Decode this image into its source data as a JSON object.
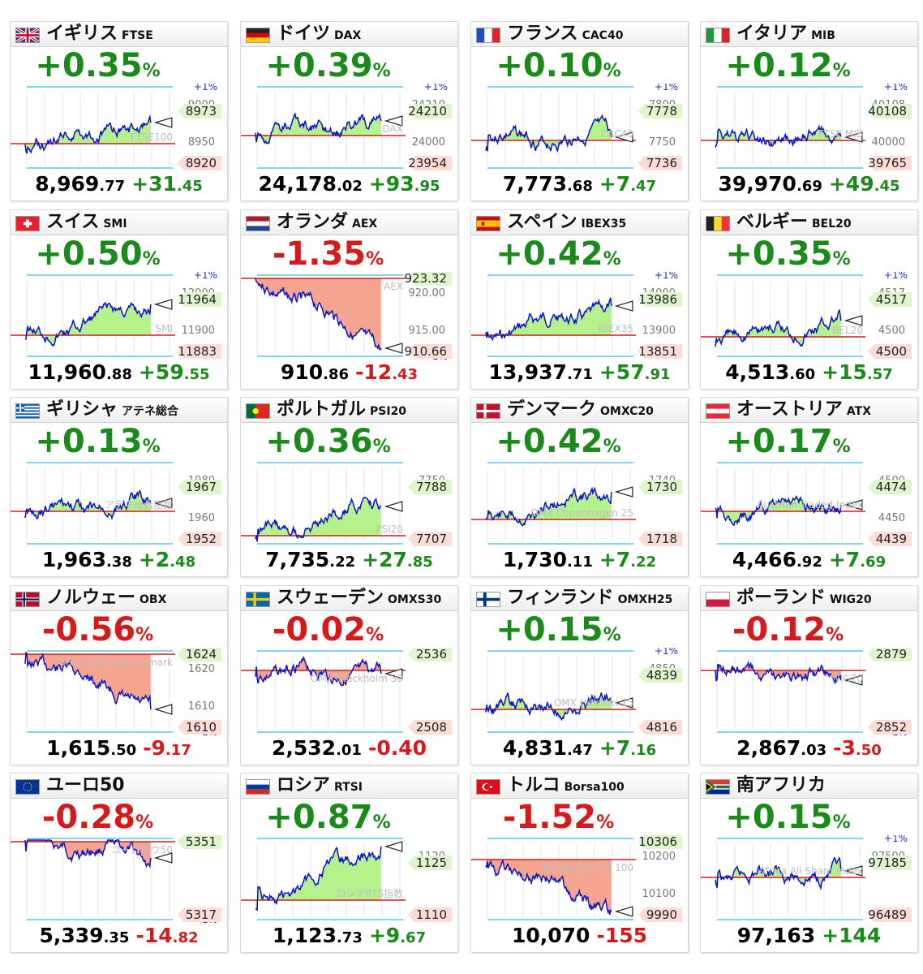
{
  "cards": [
    {
      "name": "イギリス",
      "code": "FTSE",
      "flag": "uk",
      "pct": "+0.35",
      "pct_unit": "%",
      "dir": "up",
      "price_main": "8,969",
      "price_dec": ".77",
      "chg_main": "+31",
      "chg_dec": ".45",
      "index_label": "FTSE100",
      "top_label": "+1%",
      "bottom_label": "",
      "scale_labels": [
        "9000",
        "8950"
      ],
      "flag_hi": "8973",
      "flag_lo": "8920",
      "marker_y": 0.44,
      "base_y": 0.7,
      "seed": 1
    },
    {
      "name": "ドイツ",
      "code": "DAX",
      "flag": "de",
      "pct": "+0.39",
      "pct_unit": "%",
      "dir": "up",
      "price_main": "24,178",
      "price_dec": ".02",
      "chg_main": "+93",
      "chg_dec": ".95",
      "index_label": "DAX",
      "top_label": "+1%",
      "bottom_label": "",
      "scale_labels": [
        "24210",
        "24000"
      ],
      "flag_hi": "24210",
      "flag_lo": "23954",
      "marker_y": 0.42,
      "base_y": 0.6,
      "seed": 2
    },
    {
      "name": "フランス",
      "code": "CAC40",
      "flag": "fr",
      "pct": "+0.10",
      "pct_unit": "%",
      "dir": "up",
      "price_main": "7,773",
      "price_dec": ".68",
      "chg_main": "+7",
      "chg_dec": ".47",
      "index_label": "CAC40",
      "top_label": "+1%",
      "bottom_label": "",
      "scale_labels": [
        "7800",
        "7750"
      ],
      "flag_hi": "7778",
      "flag_lo": "7736",
      "marker_y": 0.62,
      "base_y": 0.66,
      "seed": 3
    },
    {
      "name": "イタリア",
      "code": "MIB",
      "flag": "it",
      "pct": "+0.12",
      "pct_unit": "%",
      "dir": "up",
      "price_main": "39,970",
      "price_dec": ".69",
      "chg_main": "+49",
      "chg_dec": ".45",
      "index_label": "FTSE MIB",
      "top_label": "+1%",
      "bottom_label": "",
      "scale_labels": [
        "40108",
        "40000"
      ],
      "flag_hi": "40108",
      "flag_lo": "39765",
      "marker_y": 0.62,
      "base_y": 0.66,
      "seed": 4
    },
    {
      "name": "スイス",
      "code": "SMI",
      "flag": "ch",
      "pct": "+0.50",
      "pct_unit": "%",
      "dir": "up",
      "price_main": "11,960",
      "price_dec": ".88",
      "chg_main": "+59",
      "chg_dec": ".55",
      "index_label": "SMI",
      "top_label": "+1%",
      "bottom_label": "",
      "scale_labels": [
        "12000",
        "11900"
      ],
      "flag_hi": "11964",
      "flag_lo": "11883",
      "marker_y": 0.36,
      "base_y": 0.74,
      "seed": 5
    },
    {
      "name": "オランダ",
      "code": "AEX",
      "flag": "nl",
      "pct": "-1.35",
      "pct_unit": "%",
      "dir": "dn",
      "price_main": "910",
      "price_dec": ".86",
      "chg_main": "-12",
      "chg_dec": ".43",
      "index_label": "AEX",
      "top_label": "",
      "bottom_label": "-1%",
      "scale_labels": [
        "920.00",
        "915.00"
      ],
      "flag_hi": "923.32",
      "flag_lo": "910.66",
      "marker_y": 0.9,
      "base_y": 0.04,
      "seed": 6
    },
    {
      "name": "スペイン",
      "code": "IBEX35",
      "flag": "es",
      "pct": "+0.42",
      "pct_unit": "%",
      "dir": "up",
      "price_main": "13,937",
      "price_dec": ".71",
      "chg_main": "+57",
      "chg_dec": ".91",
      "index_label": "IBEX35",
      "top_label": "+1%",
      "bottom_label": "",
      "scale_labels": [
        "14000",
        "13900"
      ],
      "flag_hi": "13986",
      "flag_lo": "13851",
      "marker_y": 0.38,
      "base_y": 0.74,
      "seed": 7
    },
    {
      "name": "ベルギー",
      "code": "BEL20",
      "flag": "be",
      "pct": "+0.35",
      "pct_unit": "%",
      "dir": "up",
      "price_main": "4,513",
      "price_dec": ".60",
      "chg_main": "+15",
      "chg_dec": ".57",
      "index_label": "BEL20",
      "top_label": "+1%",
      "bottom_label": "",
      "scale_labels": [
        "4517",
        "4500"
      ],
      "flag_hi": "4517",
      "flag_lo": "4500",
      "marker_y": 0.56,
      "base_y": 0.76,
      "seed": 8
    },
    {
      "name": "ギリシャ",
      "code": "アテネ総合",
      "flag": "gr",
      "pct": "+0.13",
      "pct_unit": "%",
      "dir": "up",
      "price_main": "1,963",
      "price_dec": ".38",
      "chg_main": "+2",
      "chg_dec": ".48",
      "index_label": "アテネ総合指数",
      "top_label": "",
      "bottom_label": "",
      "scale_labels": [
        "1980",
        "1960"
      ],
      "flag_hi": "1967",
      "flag_lo": "1952",
      "marker_y": 0.5,
      "base_y": 0.6,
      "seed": 9
    },
    {
      "name": "ポルトガル",
      "code": "PSI20",
      "flag": "pt",
      "pct": "+0.36",
      "pct_unit": "%",
      "dir": "up",
      "price_main": "7,735",
      "price_dec": ".22",
      "chg_main": "+27",
      "chg_dec": ".85",
      "index_label": "PSI20",
      "top_label": "",
      "bottom_label": "",
      "scale_labels": [
        "7750",
        ""
      ],
      "flag_hi": "7788",
      "flag_lo": "7707",
      "marker_y": 0.54,
      "base_y": 0.9,
      "seed": 10
    },
    {
      "name": "デンマーク",
      "code": "OMXC20",
      "flag": "dk",
      "pct": "+0.42",
      "pct_unit": "%",
      "dir": "up",
      "price_main": "1,730",
      "price_dec": ".11",
      "chg_main": "+7",
      "chg_dec": ".22",
      "index_label": "OMX Copenhagen 25",
      "top_label": "",
      "bottom_label": "",
      "scale_labels": [
        "1740",
        ""
      ],
      "flag_hi": "1730",
      "flag_lo": "1718",
      "marker_y": 0.36,
      "base_y": 0.7,
      "seed": 11
    },
    {
      "name": "オーストリア",
      "code": "ATX",
      "flag": "at",
      "pct": "+0.17",
      "pct_unit": "%",
      "dir": "up",
      "price_main": "4,466",
      "price_dec": ".92",
      "chg_main": "+7",
      "chg_dec": ".69",
      "index_label": "Austrian Traded Index",
      "top_label": "",
      "bottom_label": "",
      "scale_labels": [
        "4500",
        "4450"
      ],
      "flag_hi": "4474",
      "flag_lo": "4439",
      "marker_y": 0.52,
      "base_y": 0.6,
      "seed": 12
    },
    {
      "name": "ノルウェー",
      "code": "OBX",
      "flag": "no",
      "pct": "-0.56",
      "pct_unit": "%",
      "dir": "dn",
      "price_main": "1,615",
      "price_dec": ".50",
      "chg_main": "-9",
      "chg_dec": ".17",
      "index_label": "OSLO EXCH Benchmark",
      "top_label": "",
      "bottom_label": "-1%",
      "scale_labels": [
        "1620",
        "1610"
      ],
      "flag_hi": "1624",
      "flag_lo": "1610",
      "marker_y": 0.72,
      "base_y": 0.04,
      "seed": 13
    },
    {
      "name": "スウェーデン",
      "code": "OMXS30",
      "flag": "se",
      "pct": "-0.02",
      "pct_unit": "%",
      "dir": "dn",
      "price_main": "2,532",
      "price_dec": ".01",
      "chg_main": "-0.40",
      "chg_dec": "",
      "index_label": "OMX Stockholm 30",
      "top_label": "",
      "bottom_label": "",
      "scale_labels": [
        "",
        ""
      ],
      "flag_hi": "2536",
      "flag_lo": "2508",
      "marker_y": 0.28,
      "base_y": 0.24,
      "seed": 14
    },
    {
      "name": "フィンランド",
      "code": "OMXH25",
      "flag": "fi",
      "pct": "+0.15",
      "pct_unit": "%",
      "dir": "up",
      "price_main": "4,831",
      "price_dec": ".47",
      "chg_main": "+7",
      "chg_dec": ".16",
      "index_label": "OMX Helsinki 25",
      "top_label": "+1%",
      "bottom_label": "",
      "scale_labels": [
        "4850",
        ""
      ],
      "flag_hi": "4839",
      "flag_lo": "4816",
      "marker_y": 0.64,
      "base_y": 0.72,
      "seed": 15
    },
    {
      "name": "ポーランド",
      "code": "WIG20",
      "flag": "pl",
      "pct": "-0.12",
      "pct_unit": "%",
      "dir": "dn",
      "price_main": "2,867",
      "price_dec": ".03",
      "chg_main": "-3",
      "chg_dec": ".50",
      "index_label": "WIG20",
      "top_label": "",
      "bottom_label": "-1%",
      "scale_labels": [
        "",
        ""
      ],
      "flag_hi": "2879",
      "flag_lo": "2852",
      "marker_y": 0.36,
      "base_y": 0.24,
      "seed": 16
    },
    {
      "name": "ユーロ50",
      "code": "",
      "flag": "eu",
      "pct": "-0.28",
      "pct_unit": "%",
      "dir": "dn",
      "price_main": "5,339",
      "price_dec": ".35",
      "chg_main": "-14",
      "chg_dec": ".82",
      "index_label": "ユーロダウ50",
      "top_label": "",
      "bottom_label": "-1%",
      "scale_labels": [
        "",
        ""
      ],
      "flag_hi": "5351",
      "flag_lo": "5317",
      "marker_y": 0.24,
      "base_y": 0.04,
      "seed": 17
    },
    {
      "name": "ロシア",
      "code": "RTSI",
      "flag": "ru",
      "pct": "+0.87",
      "pct_unit": "%",
      "dir": "up",
      "price_main": "1,123",
      "price_dec": ".73",
      "chg_main": "+9",
      "chg_dec": ".67",
      "index_label": "ロシアRTS指数",
      "top_label": "",
      "bottom_label": "",
      "scale_labels": [
        "1120",
        ""
      ],
      "flag_hi": "1125",
      "flag_lo": "1110",
      "marker_y": 0.1,
      "base_y": 0.76,
      "seed": 18
    },
    {
      "name": "トルコ",
      "code": "Borsa100",
      "flag": "tr",
      "pct": "-1.52",
      "pct_unit": "%",
      "dir": "dn",
      "price_main": "10,070",
      "price_dec": "",
      "chg_main": "-155",
      "chg_dec": "",
      "index_label": "Borsa Istanbul 100",
      "top_label": "",
      "bottom_label": "",
      "scale_labels": [
        "10200",
        "10100"
      ],
      "flag_hi": "10306",
      "flag_lo": "9990",
      "marker_y": 0.9,
      "base_y": 0.26,
      "seed": 19
    },
    {
      "name": "南アフリカ",
      "code": "",
      "flag": "za",
      "pct": "+0.15",
      "pct_unit": "%",
      "dir": "up",
      "price_main": "97,163",
      "price_dec": "",
      "chg_main": "+144",
      "chg_dec": "",
      "index_label": "Africa All Share Index",
      "top_label": "+1%",
      "bottom_label": "",
      "scale_labels": [
        "97500",
        ""
      ],
      "flag_hi": "97185",
      "flag_lo": "96489",
      "marker_y": 0.4,
      "base_y": 0.48,
      "seed": 20
    }
  ]
}
